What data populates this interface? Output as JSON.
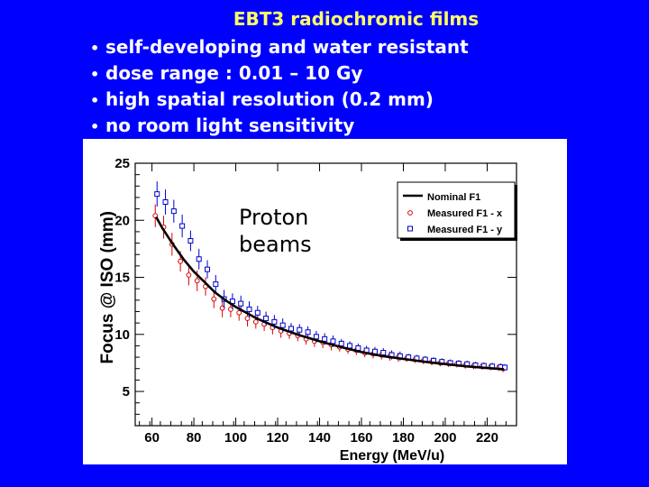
{
  "slide": {
    "title": "EBT3 radiochromic films",
    "bullets": [
      "self-developing and water resistant",
      "dose range : 0.01 – 10 Gy",
      "high spatial resolution (0.2 mm)",
      "no room light sensitivity"
    ],
    "bullet_glyph": "•"
  },
  "colors": {
    "background": "#0000ff",
    "title": "#ffff66",
    "bullets": "#ffffff",
    "nominal": "#000000",
    "measured_x": "#dd0000",
    "measured_y": "#0000cc"
  },
  "chart_data": {
    "type": "scatter",
    "xlabel": "Energy (MeV/u)",
    "ylabel": "Focus @ ISO (mm)",
    "xlim": [
      52,
      234
    ],
    "ylim": [
      2,
      25
    ],
    "xticks": [
      60,
      80,
      100,
      120,
      140,
      160,
      180,
      200,
      220
    ],
    "yticks": [
      5,
      10,
      15,
      20,
      25
    ],
    "grid": false,
    "legend_position": "top-right",
    "annotation": [
      "Proton",
      "beams"
    ],
    "series": [
      {
        "name": "Nominal F1",
        "kind": "line",
        "x": [
          62,
          65,
          70,
          75,
          80,
          85,
          90,
          95,
          100,
          110,
          120,
          130,
          140,
          150,
          160,
          170,
          180,
          190,
          200,
          210,
          220,
          228
        ],
        "y": [
          20.3,
          19.3,
          17.9,
          16.6,
          15.5,
          14.6,
          13.7,
          13.0,
          12.4,
          11.4,
          10.6,
          9.95,
          9.4,
          8.9,
          8.45,
          8.1,
          7.85,
          7.6,
          7.4,
          7.2,
          7.05,
          6.95
        ]
      },
      {
        "name": "Measured F1 - x",
        "kind": "points",
        "marker": "circle",
        "x": [
          62,
          66,
          70,
          74,
          78,
          82,
          86,
          90,
          94,
          98,
          102,
          106,
          110,
          114,
          118,
          122,
          126,
          130,
          134,
          138,
          142,
          146,
          150,
          154,
          158,
          162,
          166,
          170,
          174,
          178,
          182,
          186,
          190,
          194,
          198,
          202,
          206,
          210,
          214,
          218,
          222,
          226,
          228
        ],
        "y": [
          20.4,
          19.4,
          17.9,
          16.4,
          15.2,
          14.7,
          14.2,
          13.1,
          12.3,
          12.2,
          11.9,
          11.4,
          11.1,
          10.9,
          10.6,
          10.3,
          10.1,
          9.9,
          9.6,
          9.4,
          9.3,
          9.1,
          8.9,
          8.7,
          8.6,
          8.4,
          8.3,
          8.2,
          8.1,
          8.0,
          7.9,
          7.8,
          7.7,
          7.6,
          7.5,
          7.45,
          7.4,
          7.3,
          7.25,
          7.2,
          7.15,
          7.1,
          7.0
        ],
        "err": [
          1.0,
          1.0,
          1.0,
          0.9,
          0.9,
          0.9,
          0.8,
          0.8,
          0.8,
          0.7,
          0.7,
          0.7,
          0.6,
          0.6,
          0.6,
          0.6,
          0.5,
          0.5,
          0.5,
          0.5,
          0.5,
          0.5,
          0.4,
          0.4,
          0.4,
          0.4,
          0.4,
          0.4,
          0.4,
          0.4,
          0.3,
          0.3,
          0.3,
          0.3,
          0.3,
          0.3,
          0.3,
          0.3,
          0.3,
          0.3,
          0.3,
          0.3,
          0.3
        ]
      },
      {
        "name": "Measured F1 - y",
        "kind": "points",
        "marker": "square",
        "x": [
          62,
          66,
          70,
          74,
          78,
          82,
          86,
          90,
          94,
          98,
          102,
          106,
          110,
          114,
          118,
          122,
          126,
          130,
          134,
          138,
          142,
          146,
          150,
          154,
          158,
          162,
          166,
          170,
          174,
          178,
          182,
          186,
          190,
          194,
          198,
          202,
          206,
          210,
          214,
          218,
          222,
          226,
          228
        ],
        "y": [
          22.3,
          21.6,
          20.8,
          19.5,
          18.2,
          16.6,
          15.7,
          14.4,
          13.1,
          12.9,
          12.7,
          12.2,
          11.9,
          11.4,
          11.1,
          10.8,
          10.5,
          10.4,
          10.2,
          9.8,
          9.6,
          9.4,
          9.2,
          9.0,
          8.8,
          8.6,
          8.5,
          8.4,
          8.2,
          8.1,
          8.0,
          7.9,
          7.8,
          7.7,
          7.6,
          7.5,
          7.45,
          7.4,
          7.3,
          7.25,
          7.2,
          7.15,
          7.1
        ],
        "err": [
          1.1,
          1.1,
          1.0,
          1.0,
          0.9,
          0.9,
          0.8,
          0.8,
          0.8,
          0.7,
          0.7,
          0.7,
          0.6,
          0.6,
          0.6,
          0.6,
          0.5,
          0.5,
          0.5,
          0.5,
          0.5,
          0.5,
          0.4,
          0.4,
          0.4,
          0.4,
          0.4,
          0.4,
          0.4,
          0.4,
          0.3,
          0.3,
          0.3,
          0.3,
          0.3,
          0.3,
          0.3,
          0.3,
          0.3,
          0.3,
          0.3,
          0.3,
          0.3
        ]
      }
    ]
  }
}
